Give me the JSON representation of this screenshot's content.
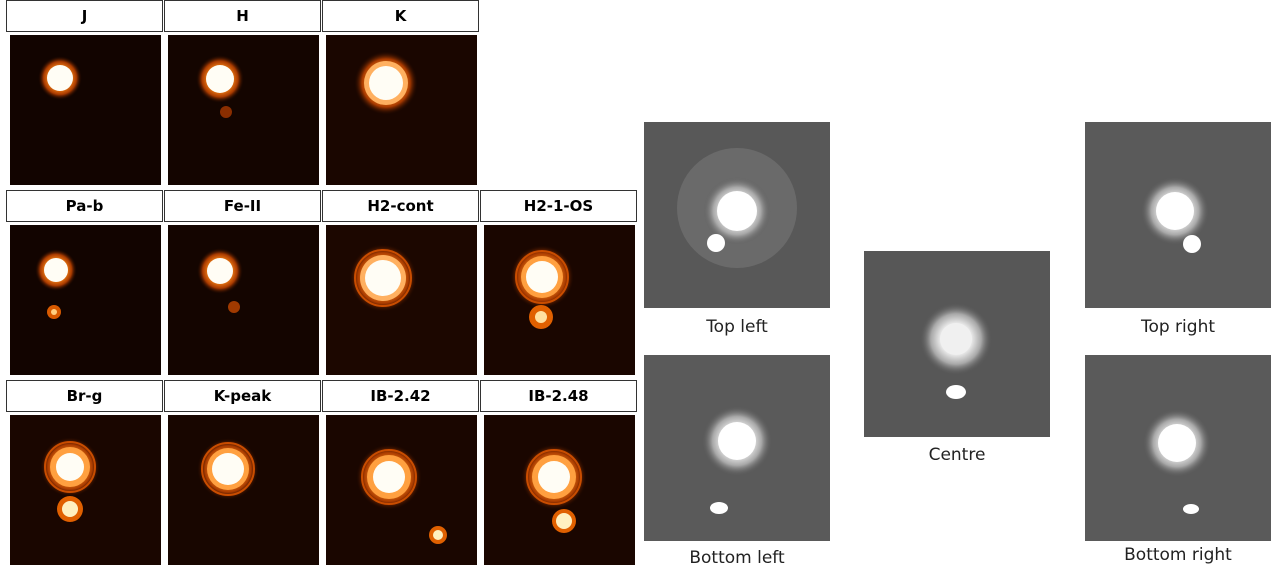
{
  "filter_panels": [
    {
      "label": "J"
    },
    {
      "label": "H"
    },
    {
      "label": "K"
    },
    {
      "label": "Pa-b"
    },
    {
      "label": "Fe-II"
    },
    {
      "label": "H2-cont"
    },
    {
      "label": "H2-1-OS"
    },
    {
      "label": "Br-g"
    },
    {
      "label": "K-peak"
    },
    {
      "label": "IB-2.42"
    },
    {
      "label": "IB-2.48"
    }
  ],
  "position_panels": [
    {
      "label": "Top left"
    },
    {
      "label": "Top right"
    },
    {
      "label": "Centre"
    },
    {
      "label": "Bottom left"
    },
    {
      "label": "Bottom right"
    }
  ],
  "colors": {
    "filter_background": "#120400",
    "star_core": "#ffffff",
    "star_glow": "#ff8c1a",
    "gray_background": "#5a5a5a"
  }
}
